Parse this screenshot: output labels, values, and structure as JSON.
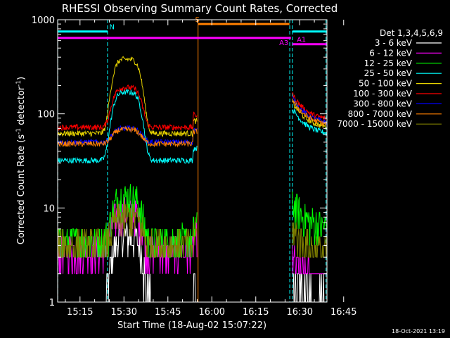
{
  "chart_data": {
    "type": "line",
    "title": "RHESSI Observing Summary Count Rates, Corrected",
    "xlabel": "Start Time (18-Aug-02 15:07:22)",
    "ylabel_main": "Corrected Count Rate (s",
    "ylabel_sup1": "-1",
    "ylabel_mid": " detector",
    "ylabel_sup2": "-1",
    "ylabel_end": ")",
    "y_scale": "log",
    "ylim": [
      1,
      1000
    ],
    "xlim_minutes": [
      7.37,
      99.3
    ],
    "x_tick_labels": [
      "15:15",
      "15:30",
      "15:45",
      "16:00",
      "16:15",
      "16:30",
      "16:45"
    ],
    "x_tick_minutes": [
      15,
      30,
      45,
      60,
      75,
      90,
      105
    ],
    "y_tick_labels": [
      "1",
      "10",
      "100",
      "1000"
    ],
    "y_tick_values": [
      1,
      10,
      100,
      1000
    ],
    "legend_title": "Det 1,3,4,5,6,9",
    "legend_position": "right",
    "datestamp": "18-Oct-2021 13:19",
    "series": [
      {
        "label": "3 - 6 keV",
        "color": "#ffffff"
      },
      {
        "label": "6 - 12 keV",
        "color": "#ff00ff"
      },
      {
        "label": "12 - 25 keV",
        "color": "#00ff00"
      },
      {
        "label": "25 - 50 keV",
        "color": "#00ffff"
      },
      {
        "label": "50 - 100 keV",
        "color": "#e6d200"
      },
      {
        "label": "100 - 300 keV",
        "color": "#ff0000"
      },
      {
        "label": "300 - 800 keV",
        "color": "#0000ff"
      },
      {
        "label": "800 - 7000 keV",
        "color": "#ff8000"
      },
      {
        "label": "7000 - 15000 keV",
        "color": "#808000"
      }
    ],
    "bars": [
      {
        "label": "N",
        "color": "#00ffff",
        "start_min": 7.4,
        "end_min": 24.4,
        "start_min_2": 87.5,
        "end_min_2": 99.3,
        "level": 750,
        "tag_min": 25.0
      },
      {
        "label": "S",
        "color": "#ff8000",
        "start_min": 55.3,
        "end_min": 86.5,
        "level": 900,
        "tag_min": 54.3
      },
      {
        "label": "A1",
        "color": "#ff00ff",
        "start_min": 87.5,
        "end_min": 99.3,
        "level": 550,
        "tag_min": 89.0
      },
      {
        "label": "A3",
        "color": "#ff00ff",
        "start_min": 7.4,
        "end_min": 87.0,
        "level": 640,
        "tag_min": 83.0
      }
    ],
    "boundaries": [
      {
        "min": 7.4,
        "color": "#00ffff",
        "style": "dash"
      },
      {
        "min": 24.4,
        "color": "#00ffff",
        "style": "dash"
      },
      {
        "min": 55.3,
        "color": "#ff8000",
        "style": "solid"
      },
      {
        "min": 86.6,
        "color": "#00ffff",
        "style": "dash"
      },
      {
        "min": 87.5,
        "color": "#00ffff",
        "style": "dash"
      },
      {
        "min": 99.0,
        "color": "#00ffff",
        "style": "dash"
      }
    ]
  }
}
